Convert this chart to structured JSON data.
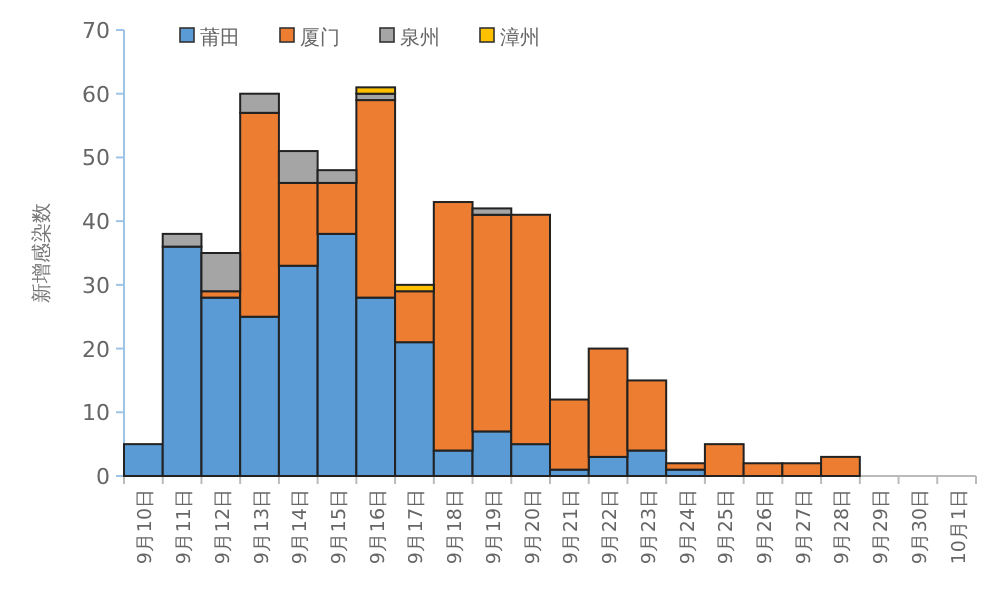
{
  "chart_data": {
    "type": "bar",
    "stacked": true,
    "ylabel": "新增感染数",
    "legend": "top",
    "grid": false,
    "categories": [
      "9月10日",
      "9月11日",
      "9月12日",
      "9月13日",
      "9月14日",
      "9月15日",
      "9月16日",
      "9月17日",
      "9月18日",
      "9月19日",
      "9月20日",
      "9月21日",
      "9月22日",
      "9月23日",
      "9月24日",
      "9月25日",
      "9月26日",
      "9月27日",
      "9月28日",
      "9月29日",
      "9月30日",
      "10月1日"
    ],
    "series": [
      {
        "name": "莆田",
        "color": "#5b9bd5",
        "values": [
          5,
          36,
          28,
          25,
          33,
          38,
          28,
          21,
          4,
          7,
          5,
          1,
          3,
          4,
          1,
          0,
          0,
          0,
          0,
          0,
          0,
          0
        ]
      },
      {
        "name": "厦门",
        "color": "#ed7d31",
        "values": [
          0,
          0,
          1,
          32,
          13,
          8,
          31,
          8,
          39,
          34,
          36,
          11,
          17,
          11,
          1,
          5,
          2,
          2,
          3,
          0,
          0,
          0
        ]
      },
      {
        "name": "泉州",
        "color": "#a5a5a5",
        "values": [
          0,
          2,
          6,
          3,
          5,
          2,
          1,
          0,
          0,
          1,
          0,
          0,
          0,
          0,
          0,
          0,
          0,
          0,
          0,
          0,
          0,
          0
        ]
      },
      {
        "name": "漳州",
        "color": "#ffc000",
        "values": [
          0,
          0,
          0,
          0,
          0,
          0,
          1,
          1,
          0,
          0,
          0,
          0,
          0,
          0,
          0,
          0,
          0,
          0,
          0,
          0,
          0,
          0
        ]
      }
    ],
    "ylim": [
      0,
      70
    ],
    "yticks": [
      0,
      10,
      20,
      30,
      40,
      50,
      60,
      70
    ]
  }
}
